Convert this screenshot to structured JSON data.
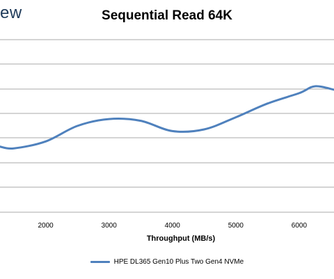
{
  "brand": {
    "fragment": "ew"
  },
  "colors": {
    "series": "#4f81bd",
    "grid": "#8c8c8c"
  },
  "chart_data": {
    "type": "line",
    "title": "Sequential Read 64K",
    "xlabel": "Throughput (MB/s)",
    "ylabel": "",
    "x_ticks": [
      2000,
      3000,
      4000,
      5000,
      6000
    ],
    "xlim": [
      1280,
      6550
    ],
    "grid": true,
    "legend_position": "bottom",
    "series": [
      {
        "name": "HPE DL365 Gen10 Plus Two Gen4 NVMe",
        "color": "#4f81bd",
        "x": [
          1280,
          1500,
          2000,
          2500,
          3000,
          3500,
          4000,
          4500,
          5000,
          5500,
          6000,
          6250,
          6550
        ],
        "y": [
          0.38,
          0.37,
          0.41,
          0.5,
          0.54,
          0.53,
          0.47,
          0.48,
          0.55,
          0.63,
          0.69,
          0.73,
          0.71
        ]
      }
    ]
  }
}
